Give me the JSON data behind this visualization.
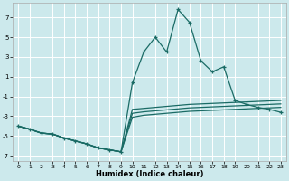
{
  "xlabel": "Humidex (Indice chaleur)",
  "bg_color": "#cce9ec",
  "grid_color": "#ffffff",
  "line_color": "#1a6b65",
  "xlim": [
    -0.5,
    23.5
  ],
  "ylim": [
    -7.5,
    8.5
  ],
  "xticks": [
    0,
    1,
    2,
    3,
    4,
    5,
    6,
    7,
    8,
    9,
    10,
    11,
    12,
    13,
    14,
    15,
    16,
    17,
    18,
    19,
    20,
    21,
    22,
    23
  ],
  "yticks": [
    -7,
    -5,
    -3,
    -1,
    1,
    3,
    5,
    7
  ],
  "marker_x": [
    0,
    1,
    2,
    3,
    4,
    5,
    6,
    7,
    8,
    9,
    10,
    11,
    12,
    13,
    14,
    15,
    16,
    17,
    18,
    19,
    20,
    21,
    22,
    23
  ],
  "marker_y": [
    -4.0,
    -4.3,
    -4.7,
    -4.8,
    -5.2,
    -5.5,
    -5.8,
    -6.2,
    -6.4,
    -6.6,
    0.4,
    3.5,
    5.0,
    3.5,
    7.8,
    6.5,
    2.6,
    1.5,
    2.0,
    -1.4,
    -1.8,
    -2.1,
    -2.3,
    -2.6
  ],
  "band1_x": [
    0,
    1,
    2,
    3,
    4,
    5,
    6,
    7,
    8,
    9,
    10,
    11,
    12,
    13,
    14,
    15,
    16,
    17,
    18,
    19,
    20,
    21,
    22,
    23
  ],
  "band1_y": [
    -4.0,
    -4.3,
    -4.7,
    -4.8,
    -5.2,
    -5.5,
    -5.8,
    -6.2,
    -6.4,
    -6.6,
    -3.1,
    -2.9,
    -2.8,
    -2.7,
    -2.6,
    -2.5,
    -2.45,
    -2.4,
    -2.35,
    -2.3,
    -2.25,
    -2.2,
    -2.15,
    -2.1
  ],
  "band2_x": [
    0,
    1,
    2,
    3,
    4,
    5,
    6,
    7,
    8,
    9,
    10,
    11,
    12,
    13,
    14,
    15,
    16,
    17,
    18,
    19,
    20,
    21,
    22,
    23
  ],
  "band2_y": [
    -4.0,
    -4.3,
    -4.7,
    -4.8,
    -5.2,
    -5.5,
    -5.8,
    -6.2,
    -6.4,
    -6.6,
    -2.7,
    -2.55,
    -2.45,
    -2.35,
    -2.25,
    -2.15,
    -2.1,
    -2.05,
    -2.0,
    -1.95,
    -1.9,
    -1.85,
    -1.8,
    -1.75
  ],
  "band3_x": [
    0,
    1,
    2,
    3,
    4,
    5,
    6,
    7,
    8,
    9,
    10,
    11,
    12,
    13,
    14,
    15,
    16,
    17,
    18,
    19,
    20,
    21,
    22,
    23
  ],
  "band3_y": [
    -4.0,
    -4.3,
    -4.7,
    -4.8,
    -5.2,
    -5.5,
    -5.8,
    -6.2,
    -6.4,
    -6.6,
    -2.3,
    -2.2,
    -2.1,
    -2.0,
    -1.9,
    -1.8,
    -1.75,
    -1.7,
    -1.65,
    -1.6,
    -1.55,
    -1.5,
    -1.45,
    -1.4
  ]
}
